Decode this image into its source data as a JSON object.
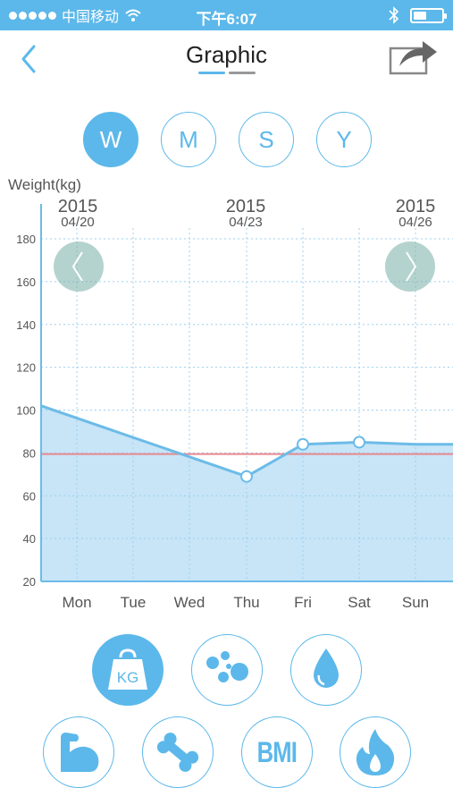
{
  "status_bar": {
    "carrier": "中国移动",
    "time": "下午6:07"
  },
  "header": {
    "title": "Graphic"
  },
  "period_tabs": [
    {
      "label": "W",
      "active": true
    },
    {
      "label": "M",
      "active": false
    },
    {
      "label": "S",
      "active": false
    },
    {
      "label": "Y",
      "active": false
    }
  ],
  "chart_data": {
    "type": "area",
    "ylabel": "Weight(kg)",
    "ylim": [
      20,
      180
    ],
    "yticks": [
      20,
      40,
      60,
      80,
      100,
      120,
      140,
      160,
      180
    ],
    "categories": [
      "Mon",
      "Tue",
      "Wed",
      "Thu",
      "Fri",
      "Sat",
      "Sun"
    ],
    "date_labels": [
      {
        "year": "2015",
        "date": "04/20"
      },
      {
        "year": "2015",
        "date": "04/23"
      },
      {
        "year": "2015",
        "date": "04/26"
      }
    ],
    "series": [
      {
        "values": [
          102,
          null,
          null,
          69,
          84,
          85,
          84
        ],
        "marked": [
          false,
          false,
          false,
          true,
          true,
          true,
          false
        ]
      }
    ],
    "target_line": 79.5,
    "grid": true,
    "colors": {
      "line": "#6cbbe8",
      "fill": "#c7e5f7",
      "target": "#e9898f",
      "grid": "#9cd0ef"
    }
  },
  "metrics": [
    {
      "name": "kg",
      "label": "KG",
      "active": true
    },
    {
      "name": "fat",
      "active": false
    },
    {
      "name": "water",
      "active": false
    },
    {
      "name": "muscle",
      "active": false
    },
    {
      "name": "bone",
      "active": false
    },
    {
      "name": "bmi",
      "label": "BMI",
      "active": false
    },
    {
      "name": "calorie",
      "active": false
    }
  ],
  "colors": {
    "accent": "#5cb8ea",
    "underline_gray": "#999999"
  }
}
